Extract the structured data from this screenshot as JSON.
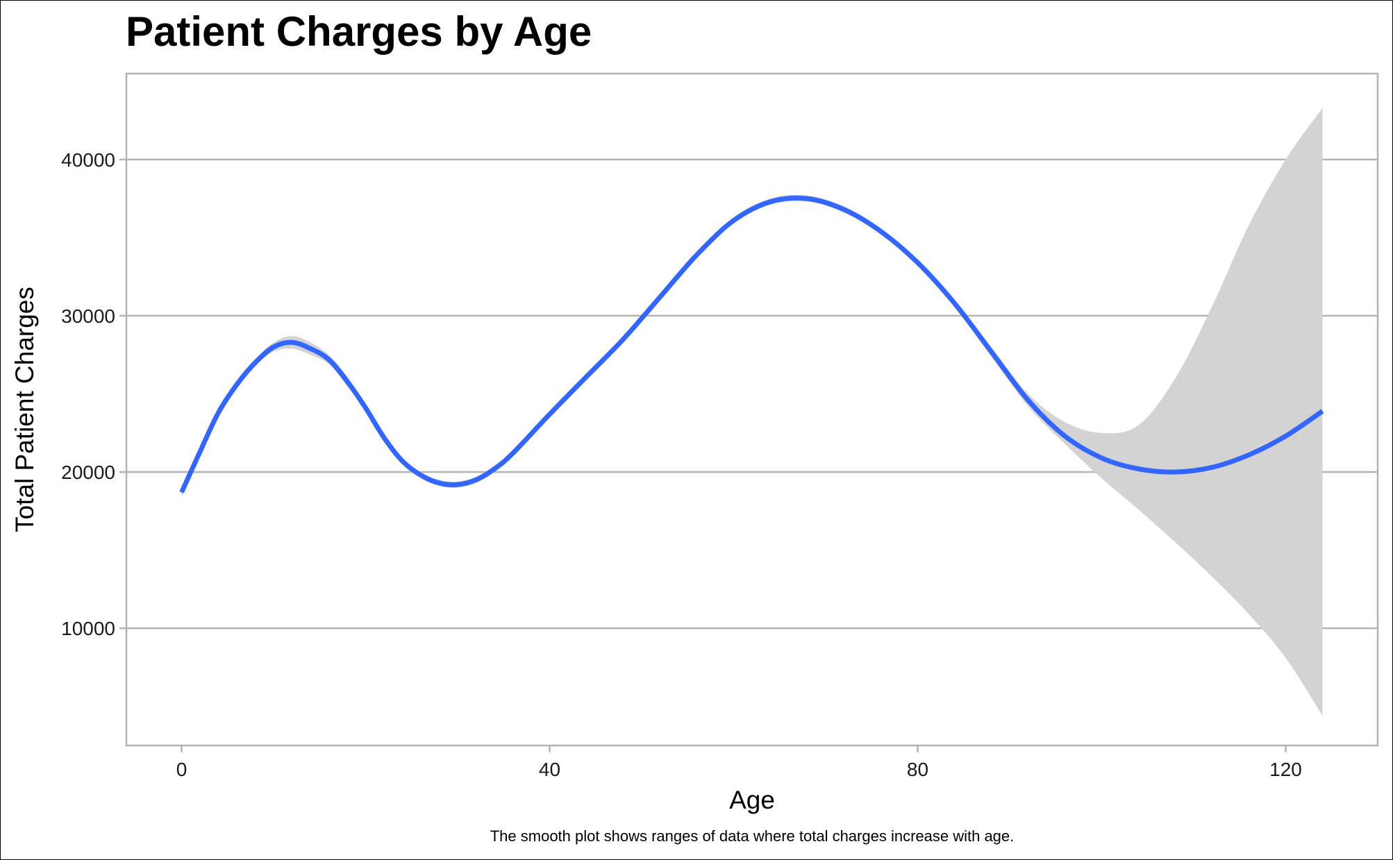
{
  "chart_data": {
    "type": "line",
    "title": "Patient Charges by Age",
    "xlabel": "Age",
    "ylabel": "Total Patient Charges",
    "caption": "The smooth plot shows ranges of data where total charges increase with age.",
    "x_ticks": [
      0,
      40,
      80,
      120
    ],
    "y_ticks": [
      10000,
      20000,
      30000,
      40000
    ],
    "xlim": [
      -6,
      130
    ],
    "ylim": [
      2500,
      45500
    ],
    "grid": "horizontal-major",
    "legend": "none",
    "series": [
      {
        "style": "smooth-line-with-confidence-band",
        "color": "#3366FF",
        "band_color": "#D3D3D3",
        "x": [
          0,
          2,
          4,
          6,
          8,
          10,
          12,
          14,
          16,
          18,
          20,
          22,
          24,
          26,
          28,
          30,
          32,
          34,
          36,
          40,
          44,
          48,
          52,
          56,
          60,
          64,
          68,
          72,
          76,
          80,
          84,
          88,
          92,
          96,
          100,
          104,
          108,
          112,
          116,
          120,
          124
        ],
        "y": [
          18700,
          21300,
          23800,
          25600,
          27000,
          28000,
          28300,
          27900,
          27200,
          25800,
          24100,
          22200,
          20700,
          19800,
          19300,
          19200,
          19500,
          20200,
          21200,
          23700,
          26100,
          28500,
          31200,
          33900,
          36100,
          37300,
          37500,
          36800,
          35400,
          33400,
          30800,
          27700,
          24600,
          22300,
          20900,
          20200,
          20000,
          20300,
          21100,
          22300,
          23900
        ],
        "lower": [
          18400,
          21100,
          23600,
          25400,
          26800,
          27700,
          27900,
          27500,
          26900,
          25500,
          23900,
          22000,
          20500,
          19600,
          19100,
          19000,
          19300,
          20000,
          21000,
          23500,
          25900,
          28300,
          31000,
          33700,
          35900,
          37100,
          37300,
          36600,
          35200,
          33200,
          30600,
          27400,
          24200,
          21800,
          19600,
          17600,
          15500,
          13300,
          10900,
          8100,
          4400
        ],
        "upper": [
          19000,
          21500,
          24000,
          25800,
          27200,
          28300,
          28700,
          28300,
          27500,
          26100,
          24300,
          22400,
          20900,
          20000,
          19500,
          19400,
          19700,
          20400,
          21400,
          23900,
          26300,
          28700,
          31400,
          34100,
          36300,
          37500,
          37700,
          37000,
          35600,
          33600,
          31000,
          28000,
          25000,
          23200,
          22500,
          23000,
          26000,
          30600,
          35800,
          40000,
          43300
        ]
      }
    ]
  }
}
